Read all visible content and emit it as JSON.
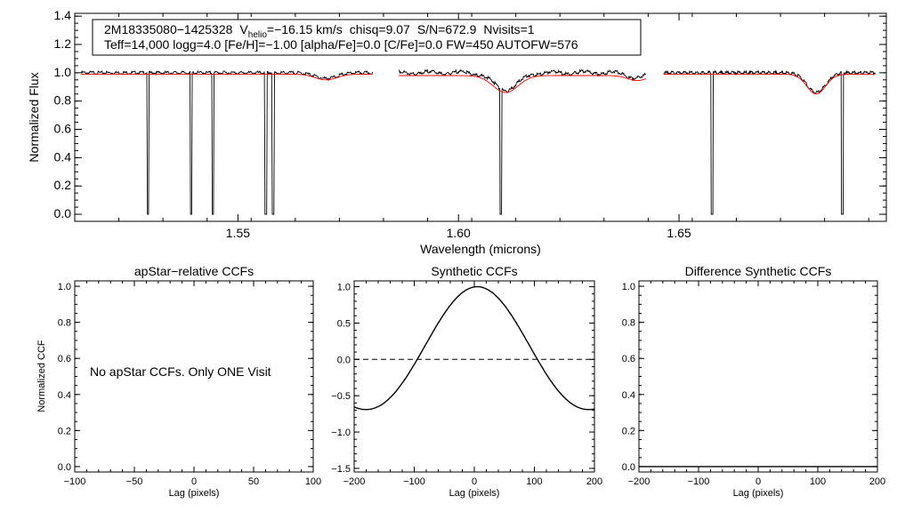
{
  "chart_data": [
    {
      "type": "line",
      "name": "spectrum",
      "xlabel": "Wavelength (microns)",
      "ylabel": "Normalized Flux",
      "xlim": [
        1.513,
        1.697
      ],
      "ylim": [
        -0.05,
        1.42
      ],
      "x_ticks": [
        {
          "value": 1.55,
          "label": "1.55"
        },
        {
          "value": 1.6,
          "label": "1.60"
        },
        {
          "value": 1.65,
          "label": "1.65"
        }
      ],
      "y_ticks": [
        {
          "value": 0.0,
          "label": "0.0"
        },
        {
          "value": 0.2,
          "label": "0.2"
        },
        {
          "value": 0.4,
          "label": "0.4"
        },
        {
          "value": 0.6,
          "label": "0.6"
        },
        {
          "value": 0.8,
          "label": "0.8"
        },
        {
          "value": 1.0,
          "label": "1.0"
        },
        {
          "value": 1.2,
          "label": "1.2"
        },
        {
          "value": 1.4,
          "label": "1.4"
        }
      ],
      "info": {
        "star_id": "2M18335080−1425328",
        "vhelio_label": "V",
        "vhelio_sub": "helio",
        "vhelio_value": "=−16.15 km/s",
        "chisq": "chisq=9.07",
        "snr": "S/N=672.9",
        "nvisits": "Nvisits=1",
        "params": "Teff=14,000 logg=4.0 [Fe/H]=−1.00 [alpha/Fe]=0.0 [C/Fe]=0.0 FW=450 AUTOFW=576"
      },
      "series": [
        {
          "name": "observed",
          "color": "#000000"
        },
        {
          "name": "synthetic",
          "color": "#ff0000"
        }
      ],
      "chips": [
        [
          1.5145,
          1.5805
        ],
        [
          1.5865,
          1.6425
        ],
        [
          1.6465,
          1.6945
        ]
      ],
      "abs_lines": [
        {
          "center": 1.57,
          "depth": 0.04,
          "width": 0.0035
        },
        {
          "center": 1.6107,
          "depth": 0.12,
          "width": 0.004
        },
        {
          "center": 1.6405,
          "depth": 0.035,
          "width": 0.003
        },
        {
          "center": 1.6811,
          "depth": 0.14,
          "width": 0.003
        }
      ],
      "bad_pixels": [
        1.5296,
        1.5394,
        1.5443,
        1.5563,
        1.558,
        1.6096,
        1.6575,
        1.687
      ]
    },
    {
      "type": "line",
      "name": "apstar_ccf",
      "title": "apStar−relative CCFs",
      "xlabel": "Lag (pixels)",
      "ylabel": "Normalized CCF",
      "xlim": [
        -100,
        100
      ],
      "ylim": [
        -0.03,
        1.03
      ],
      "x_ticks": [
        {
          "value": -100,
          "label": "−100"
        },
        {
          "value": -50,
          "label": "−50"
        },
        {
          "value": 0,
          "label": "0"
        },
        {
          "value": 50,
          "label": "50"
        },
        {
          "value": 100,
          "label": "100"
        }
      ],
      "y_ticks": [
        {
          "value": 0.0,
          "label": "0.0"
        },
        {
          "value": 0.2,
          "label": "0.2"
        },
        {
          "value": 0.4,
          "label": "0.4"
        },
        {
          "value": 0.6,
          "label": "0.6"
        },
        {
          "value": 0.8,
          "label": "0.8"
        },
        {
          "value": 1.0,
          "label": "1.0"
        }
      ],
      "annotation": "No apStar CCFs.  Only ONE Visit"
    },
    {
      "type": "line",
      "name": "synthetic_ccf",
      "title": "Synthetic CCFs",
      "xlabel": "Lag (pixels)",
      "xlim": [
        -200,
        200
      ],
      "ylim": [
        -1.55,
        1.08
      ],
      "x_ticks": [
        {
          "value": -200,
          "label": "−200"
        },
        {
          "value": -100,
          "label": "−100"
        },
        {
          "value": 0,
          "label": "0"
        },
        {
          "value": 100,
          "label": "100"
        },
        {
          "value": 200,
          "label": "200"
        }
      ],
      "y_ticks": [
        {
          "value": -1.5,
          "label": "−1.5"
        },
        {
          "value": -1.0,
          "label": "−1.0"
        },
        {
          "value": -0.5,
          "label": "−0.5"
        },
        {
          "value": 0.0,
          "label": "0.0"
        },
        {
          "value": 0.5,
          "label": "0.5"
        },
        {
          "value": 1.0,
          "label": "1.0"
        }
      ],
      "peak_lag": 5,
      "peak_value": 1.0,
      "zero_crossing_half_width": 100,
      "zero_line": 0.0
    },
    {
      "type": "line",
      "name": "difference_ccf",
      "title": "Difference Synthetic CCFs",
      "xlabel": "Lag (pixels)",
      "xlim": [
        -200,
        200
      ],
      "ylim": [
        -0.03,
        1.03
      ],
      "x_ticks": [
        {
          "value": -200,
          "label": "−200"
        },
        {
          "value": -100,
          "label": "−100"
        },
        {
          "value": 0,
          "label": "0"
        },
        {
          "value": 100,
          "label": "100"
        },
        {
          "value": 200,
          "label": "200"
        }
      ],
      "y_ticks": [
        {
          "value": 0.0,
          "label": "0.0"
        },
        {
          "value": 0.2,
          "label": "0.2"
        },
        {
          "value": 0.4,
          "label": "0.4"
        },
        {
          "value": 0.6,
          "label": "0.6"
        },
        {
          "value": 0.8,
          "label": "0.8"
        },
        {
          "value": 1.0,
          "label": "1.0"
        }
      ],
      "flat_value": 0.0
    }
  ]
}
